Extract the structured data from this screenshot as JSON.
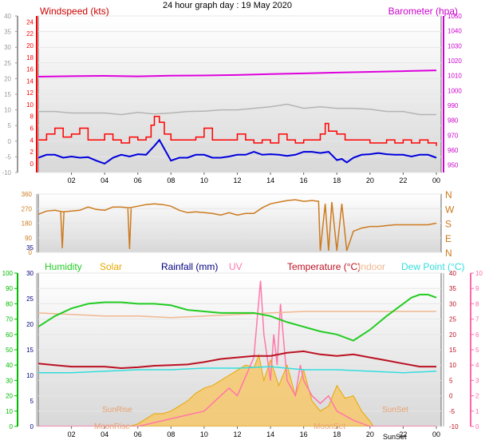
{
  "page_title": "24 hour graph day : 19 May 2020",
  "colors": {
    "wind_avg": "#0000dd",
    "wind_gust": "#ff0000",
    "wind_title": "#cc0000",
    "barometer": "#dd00dd",
    "temp_gray": "#b4b4b4",
    "direction": "#cc7a1e",
    "humidity": "#22cc22",
    "solar": "#e6a800",
    "solar_fill": "#f7c86b",
    "rainfall": "#000080",
    "uv": "#ff77aa",
    "temperature": "#bb1122",
    "indoor": "#f0b890",
    "dew_point": "#33dddd",
    "axis_left": "#888888",
    "humidity_axis": "#00bb00",
    "uv_axis": "#ff66aa",
    "sun_label": "#e8a070",
    "plot_bg_top": "#ffffff",
    "plot_bg_bottom": "#d8d8d8"
  },
  "x_axis": {
    "range_hours": [
      0,
      24
    ],
    "tick_labels": [
      "02",
      "04",
      "06",
      "08",
      "10",
      "12",
      "14",
      "16",
      "18",
      "20",
      "22",
      "00"
    ]
  },
  "chart_data": [
    {
      "id": "wind_baro",
      "type": "line",
      "title_left": "Windspeed (kts)",
      "title_right": "Barometer (hpa)",
      "left_ticks": [
        "40",
        "35",
        "30",
        "25",
        "20",
        "15",
        "10",
        "5",
        "0",
        "-5",
        "-10"
      ],
      "left_range": [
        -10,
        40
      ],
      "inner_ticks": [
        "24",
        "22",
        "20",
        "18",
        "16",
        "14",
        "12",
        "10",
        "8",
        "6",
        "4",
        "2",
        "0"
      ],
      "inner_range": [
        -1.5,
        25
      ],
      "right_ticks": [
        "1050",
        "1040",
        "1030",
        "1020",
        "1010",
        "1000",
        "990",
        "980",
        "970",
        "960",
        "950"
      ],
      "right_range": [
        945,
        1050
      ],
      "ylim": [
        -10,
        40
      ],
      "series": [
        {
          "key": "barometer",
          "x": [
            0,
            2,
            4,
            6,
            8,
            10,
            12,
            14,
            16,
            18,
            20,
            22,
            24
          ],
          "y": [
            1009.3,
            1009.6,
            1009.8,
            1009.5,
            1010,
            1010.1,
            1010.4,
            1011,
            1011.5,
            1012,
            1012.5,
            1013,
            1013.5
          ]
        },
        {
          "key": "gray",
          "x": [
            0,
            1,
            2,
            4,
            5,
            6,
            7,
            8,
            9,
            10,
            11,
            12,
            13,
            14,
            15,
            16,
            17,
            18,
            19,
            20,
            21,
            22,
            23,
            24
          ],
          "y": [
            9.5,
            9.5,
            9,
            9,
            8.5,
            9.2,
            8.7,
            9,
            9.5,
            9.6,
            10,
            10,
            10.5,
            11,
            11.8,
            10.5,
            11,
            10.5,
            10.5,
            10.2,
            9.5,
            9.5,
            8.5,
            8.5
          ]
        },
        {
          "key": "wind_gust",
          "x": [
            0,
            0.5,
            1,
            1.5,
            2,
            2.5,
            3,
            3.5,
            4,
            4.5,
            5,
            5.5,
            6,
            6.5,
            6.8,
            7,
            7.3,
            7.6,
            8,
            8.5,
            9,
            9.5,
            10,
            10.5,
            11,
            11.5,
            12,
            12.5,
            13,
            13.5,
            14,
            14.5,
            15,
            15.5,
            16,
            16.5,
            17,
            17.3,
            17.5,
            18,
            18.5,
            19,
            19.5,
            20,
            20.5,
            21,
            21.5,
            22,
            22.5,
            23,
            23.5,
            24
          ],
          "y": [
            4,
            5,
            6,
            4.5,
            5,
            6,
            4,
            4,
            5,
            4,
            3.5,
            4.5,
            4,
            4.5,
            6.5,
            8,
            7,
            5,
            4,
            4,
            4,
            4.5,
            6,
            4,
            4,
            4,
            5,
            4,
            3.5,
            4,
            3.5,
            5,
            4,
            3.5,
            4,
            4,
            5,
            6.8,
            5.5,
            5,
            4,
            4,
            4,
            3.5,
            3.5,
            4,
            3.5,
            4,
            3.5,
            4,
            3.5,
            3
          ]
        },
        {
          "key": "wind_avg",
          "x": [
            0,
            0.5,
            1,
            1.5,
            2,
            2.5,
            3,
            3.5,
            4,
            4.5,
            5,
            5.5,
            6,
            6.5,
            7,
            7.3,
            7.6,
            8,
            8.5,
            9,
            9.5,
            10,
            10.5,
            11,
            11.5,
            12,
            12.5,
            13,
            13.5,
            14,
            14.5,
            15,
            15.5,
            16,
            16.5,
            17,
            17.5,
            18,
            18.3,
            18.6,
            19,
            19.5,
            20,
            20.5,
            21,
            21.5,
            22,
            22.5,
            23,
            23.5,
            24
          ],
          "y": [
            1,
            1.5,
            1.5,
            1,
            1.2,
            1,
            1.1,
            0.5,
            0,
            1,
            1.5,
            1.2,
            1.6,
            1.5,
            3,
            4,
            2.5,
            0.5,
            1,
            1,
            1.5,
            1.5,
            1,
            1,
            1.2,
            1.5,
            1.5,
            2,
            1.5,
            1.6,
            1.5,
            1.3,
            1.5,
            2,
            2,
            1.8,
            2,
            0.6,
            0.8,
            0.2,
            1,
            1.5,
            1.6,
            1.8,
            1.6,
            1.5,
            1.5,
            1.2,
            1.5,
            1.5,
            1
          ]
        }
      ]
    },
    {
      "id": "direction",
      "type": "line",
      "left_ticks": [
        "360",
        "270",
        "180",
        "90",
        "0"
      ],
      "right_ticks": [
        "N",
        "W",
        "S",
        "E",
        "N"
      ],
      "ylim": [
        0,
        360
      ],
      "series": [
        {
          "key": "direction",
          "x": [
            0,
            0.5,
            1,
            1.5,
            2,
            2.5,
            3,
            3.5,
            4,
            4.5,
            5,
            5.5,
            6,
            6.5,
            7,
            7.5,
            8,
            8.5,
            9,
            9.5,
            10,
            10.5,
            11,
            11.5,
            12,
            12.5,
            13,
            13.5,
            14,
            14.5,
            15,
            15.5,
            16,
            16.5,
            16.9,
            17,
            17.3,
            17.5,
            17.7,
            18,
            18.3,
            18.6,
            19,
            19.5,
            20,
            20.5,
            21,
            21.5,
            22,
            22.5,
            23,
            23.5,
            24
          ],
          "y": [
            235,
            255,
            260,
            250,
            255,
            260,
            280,
            265,
            260,
            280,
            280,
            275,
            285,
            295,
            300,
            295,
            285,
            260,
            245,
            250,
            245,
            240,
            230,
            245,
            230,
            240,
            240,
            275,
            300,
            310,
            320,
            325,
            315,
            320,
            315,
            10,
            300,
            10,
            310,
            10,
            300,
            10,
            130,
            150,
            160,
            160,
            165,
            170,
            170,
            170,
            170,
            170,
            180
          ]
        },
        {
          "key": "spike",
          "x": [
            1.35,
            1.45,
            1.55
          ],
          "y": [
            250,
            25,
            250
          ]
        },
        {
          "key": "spike",
          "x": [
            5.4,
            5.5,
            5.6
          ],
          "y": [
            270,
            20,
            270
          ]
        }
      ]
    },
    {
      "id": "environment",
      "type": "area",
      "left_ticks": [
        "100",
        "90",
        "80",
        "70",
        "60",
        "50",
        "40",
        "30",
        "20",
        "10",
        "0"
      ],
      "left2_ticks": [
        "35",
        "30",
        "25",
        "20",
        "15",
        "10",
        "5",
        "0"
      ],
      "right_ticks": [
        "40",
        "35",
        "30",
        "25",
        "20",
        "15",
        "10",
        "5",
        "0",
        "-5",
        "-10"
      ],
      "right2_ticks": [
        "10",
        "9",
        "8",
        "7",
        "6",
        "5",
        "4",
        "3",
        "2",
        "1",
        "0"
      ],
      "legend": [
        "Humidity",
        "Solar",
        "Rainfall (mm)",
        "UV",
        "Temperature (°C)",
        "Indoor",
        "Dew Point (°C)"
      ],
      "sun_labels": {
        "sunrise": "SunRise",
        "moonrise": "MoonRise",
        "sunset": "SunSet",
        "moonset": "MoonSet",
        "sunset_axis": "SunSet"
      },
      "ylim": [
        -10,
        40
      ],
      "series": [
        {
          "key": "humidity",
          "unit": "%",
          "x": [
            0,
            1,
            2,
            3,
            4,
            5,
            6,
            7,
            8,
            9,
            10,
            11,
            12,
            13,
            14,
            15,
            16,
            17,
            18,
            19,
            20,
            21,
            22,
            22.5,
            23,
            23.5,
            24
          ],
          "y": [
            65,
            72,
            77,
            80,
            81,
            81,
            80,
            80,
            79,
            76,
            75,
            74,
            74,
            74,
            72,
            68,
            65,
            62,
            60,
            56,
            63,
            72,
            80,
            84,
            86,
            86,
            84
          ]
        },
        {
          "key": "indoor",
          "unit": "degC",
          "x": [
            0,
            2,
            4,
            6,
            8,
            10,
            12,
            14,
            16,
            18,
            20,
            22,
            24
          ],
          "y": [
            27,
            26.5,
            26,
            26,
            25.5,
            26,
            26.5,
            27,
            27.5,
            27.5,
            27.5,
            27.5,
            27.5
          ]
        },
        {
          "key": "temperature",
          "unit": "degC",
          "x": [
            0,
            1,
            2,
            3,
            4,
            5,
            6,
            7,
            8,
            9,
            10,
            11,
            12,
            13,
            14,
            15,
            16,
            17,
            18,
            19,
            20,
            21,
            22,
            23,
            24
          ],
          "y": [
            10.5,
            10,
            9.5,
            9.5,
            9.5,
            9,
            9.3,
            9.8,
            10,
            10.2,
            11,
            12,
            12.5,
            13,
            13,
            14,
            14.5,
            13.5,
            13,
            13.5,
            12.5,
            11.5,
            10.5,
            9.5,
            9.5
          ]
        },
        {
          "key": "dew_point",
          "unit": "degC",
          "x": [
            0,
            2,
            4,
            6,
            8,
            10,
            12,
            14,
            16,
            18,
            20,
            22,
            24
          ],
          "y": [
            7.5,
            7.5,
            8,
            8.5,
            8.5,
            9,
            9,
            9.5,
            8.5,
            8.5,
            8,
            7.5,
            8
          ]
        },
        {
          "key": "uv",
          "unit": "index",
          "x": [
            0,
            6,
            8,
            10,
            11,
            11.5,
            12,
            13,
            13.2,
            13.4,
            13.6,
            14,
            14.2,
            14.4,
            14.6,
            15,
            15.5,
            15.8,
            16,
            16.5,
            17,
            17.5,
            18,
            19,
            19.5,
            20,
            24
          ],
          "y": [
            0,
            0,
            0.5,
            1,
            2,
            2.5,
            2,
            4.5,
            7,
            9.5,
            6,
            3,
            6,
            4,
            8,
            3,
            2,
            4,
            3,
            2,
            1.5,
            2,
            1,
            0.4,
            0.2,
            0,
            0
          ]
        },
        {
          "key": "solar",
          "unit": "W/m2",
          "x": [
            0,
            5.5,
            6,
            6.5,
            7,
            7.5,
            8,
            8.5,
            9,
            9.5,
            10,
            10.5,
            11,
            11.5,
            12,
            12.5,
            13,
            13.3,
            13.6,
            14,
            14.5,
            15,
            15.5,
            16,
            16.5,
            17,
            17.5,
            18,
            18.5,
            19,
            19.5,
            20,
            20.2,
            24
          ],
          "y": [
            0,
            0,
            0.5,
            1.5,
            2.5,
            2.5,
            3,
            4,
            5,
            6.5,
            7.5,
            8,
            9,
            10,
            11,
            12,
            11.5,
            14,
            9,
            13,
            8,
            12,
            6,
            11,
            5,
            3,
            4,
            8,
            5.5,
            6,
            3,
            1,
            0,
            0
          ]
        }
      ]
    }
  ]
}
